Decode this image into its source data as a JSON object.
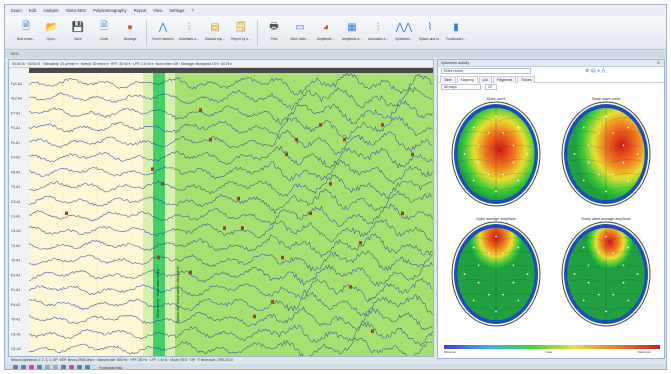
{
  "menu": [
    "Exam",
    "Edit",
    "Analysis",
    "Video EEG",
    "Polysomnography",
    "Report",
    "View",
    "Settings",
    "?"
  ],
  "toolbar": [
    {
      "label": "New exam...",
      "icon": "new-exam-icon",
      "glyph": "🗎",
      "color": "#3a7fd0"
    },
    {
      "label": "Open...",
      "icon": "open-folder-icon",
      "glyph": "📂",
      "color": "#e0a020"
    },
    {
      "label": "Save",
      "icon": "save-icon",
      "glyph": "💾",
      "color": "#3a7fd0"
    },
    {
      "label": "Close",
      "icon": "close-file-icon",
      "glyph": "🗎",
      "color": "#6a8fc0"
    },
    {
      "label": "Montage",
      "icon": "montage-icon",
      "glyph": "●",
      "color": "#d06020"
    },
    {
      "label": "sep"
    },
    {
      "label": "Event markers",
      "icon": "event-markers-icon",
      "glyph": "⋀",
      "color": "#3a7fd0"
    },
    {
      "label": "Automatic a...",
      "icon": "automatic-analysis-icon",
      "glyph": "⫶",
      "color": "#3a7fd0"
    },
    {
      "label": "Manual equ...",
      "icon": "manual-equalization-icon",
      "glyph": "▤",
      "color": "#d0a020"
    },
    {
      "label": "Report by a...",
      "icon": "report-icon",
      "glyph": "🗒",
      "color": "#d0a020"
    },
    {
      "label": "sep"
    },
    {
      "label": "Print",
      "icon": "print-icon",
      "glyph": "🖶",
      "color": "#555555"
    },
    {
      "label": "Work table ...",
      "icon": "work-table-icon",
      "glyph": "▭",
      "color": "#3a7fd0"
    },
    {
      "label": "Amplitude ...",
      "icon": "amplitude-icon",
      "glyph": "◕",
      "color": "#e04020"
    },
    {
      "label": "Amplitude a...",
      "icon": "amplitude-analysis-icon",
      "glyph": "▦",
      "color": "#3a7fd0"
    },
    {
      "label": "Automatic a...",
      "icon": "automatic-analysis-2-icon",
      "glyph": "⫶",
      "color": "#3a7fd0"
    },
    {
      "label": "Spikeform...",
      "icon": "spikeform-icon",
      "glyph": "⋀⋀",
      "color": "#3a7fd0"
    },
    {
      "label": "Spikes and w...",
      "icon": "spikes-waves-icon",
      "glyph": "⌇",
      "color": "#3a7fd0"
    },
    {
      "label": "Functional t...",
      "icon": "functional-test-icon",
      "glyph": "▮",
      "color": "#3a7fd0"
    }
  ],
  "doc_tab": "EEG",
  "eeg": {
    "info": "00:16:36 · 00:06:01 · Sensitivity: 20 µV/mm ▾ · Sweep: 30 mm/s ▾ · HFF: 35 Hz ▾ · LFF: 1.6 Hz ▾ · Notch filter: Off · Montage: Monopolar 19 ▾ · All 19 ▾",
    "channels": [
      "Fp1-A1",
      "Fp2-A2",
      "F7-A1",
      "F3-A1",
      "Fz-A1",
      "F4-A2",
      "F8-A2",
      "T3-A1",
      "C3-A1",
      "Cz-A1",
      "C4-A2",
      "T4-A2",
      "T5-A1",
      "P3-A1",
      "Pz-A1",
      "P4-A2",
      "T6-A2",
      "O1-A1",
      "O2-A2"
    ],
    "annotation_1": "Sleep sleep · Slow-wave sleep",
    "annotation_2": "Spikes and sharp waves stimulation",
    "bg_normal": "#fdf7d6",
    "bg_highlight": "#a6e070",
    "bg_band": "#44d068",
    "trace_color": "#3a4ea0",
    "marker_color": "#a04020"
  },
  "status": "Neuron-Spectrum-1, 2, 3, 4, 4/P, 4/EP, Neuro-EMG-Micro · Sample rate: 500 Hz · HFF: 35 Hz · LFF: 1.6 Hz · Mode: EEG · Off · © Neurosoft, 1992-2014",
  "bottom_label": "Functional tests",
  "side": {
    "title": "Spikeform activity",
    "select_label": "Entire record",
    "tabs": [
      "Table",
      "Mapping",
      "List",
      "Fragments",
      "Traces"
    ],
    "active_tab": "Mapping",
    "filter_label": "All maps",
    "filter_value": "20",
    "maps": [
      {
        "title": "Spike count",
        "hot": "central"
      },
      {
        "title": "Sharp wave count",
        "hot": "right"
      },
      {
        "title": "Spike average amplitude",
        "hot": "frontal"
      },
      {
        "title": "Sharp wave average amplitude",
        "hot": "frontal-small"
      }
    ],
    "scale_min": "Minimum",
    "scale_auto": "Auto",
    "scale_max": "Maximum"
  }
}
